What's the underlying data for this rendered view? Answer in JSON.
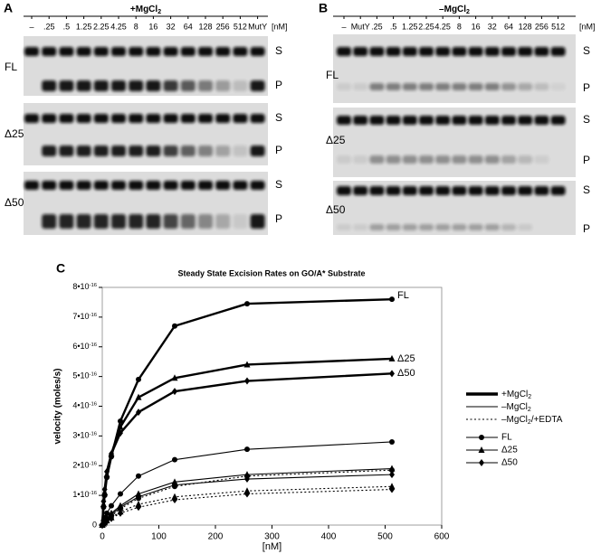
{
  "panel_a": {
    "label": "A",
    "condition": "+MgCl2",
    "lanes": [
      "–",
      ".25",
      ".5",
      "1.25",
      "2.25",
      "4.25",
      "8",
      "16",
      "32",
      "64",
      "128",
      "256",
      "512",
      "MutY"
    ],
    "unit": "[nM]",
    "rows": [
      "FL",
      "Δ25",
      "Δ50"
    ],
    "band_labels": [
      "S",
      "P"
    ]
  },
  "panel_b": {
    "label": "B",
    "condition": "–MgCl2",
    "lanes": [
      "–",
      "MutY",
      ".25",
      ".5",
      "1.25",
      "2.25",
      "4.25",
      "8",
      "16",
      "32",
      "64",
      "128",
      "256",
      "512"
    ],
    "unit": "[nM]",
    "rows": [
      "FL",
      "Δ25",
      "Δ50"
    ],
    "band_labels": [
      "S",
      "P"
    ]
  },
  "chart_data": {
    "type": "line",
    "panel_label": "C",
    "title": "Steady State Excision Rates on GO/A* Substrate",
    "x_label": "[nM]",
    "y_label": "velocity (moles/s)",
    "x": [
      0,
      2.25,
      4.25,
      8,
      16,
      32,
      64,
      128,
      256,
      512
    ],
    "xlim": [
      0,
      600
    ],
    "xticks": [
      0,
      100,
      200,
      300,
      400,
      500,
      600
    ],
    "ylim": [
      0,
      8e-16
    ],
    "yticks": [
      0,
      {
        "value": 1e-16,
        "label": "1•10-16"
      },
      {
        "value": 2e-16,
        "label": "2•10-16"
      },
      {
        "value": 3e-16,
        "label": "3•10-16"
      },
      {
        "value": 4e-16,
        "label": "4•10-16"
      },
      {
        "value": 5e-16,
        "label": "5•10-16"
      },
      {
        "value": 6e-16,
        "label": "6•10-16"
      },
      {
        "value": 7e-16,
        "label": "7•10-16"
      },
      {
        "value": 8e-16,
        "label": "8•10-16"
      }
    ],
    "color": "#000000",
    "series": [
      {
        "line": "thick",
        "marker": "circle",
        "values": [
          0,
          6e-17,
          1e-16,
          1.6e-16,
          2.3e-16,
          3.5e-16,
          4.9e-16,
          6.7e-16,
          7.45e-16,
          7.6e-16
        ]
      },
      {
        "line": "thick",
        "marker": "triangle",
        "values": [
          0,
          7e-17,
          1.1e-16,
          1.7e-16,
          2.4e-16,
          3.3e-16,
          4.3e-16,
          4.95e-16,
          5.4e-16,
          5.6e-16
        ]
      },
      {
        "line": "thick",
        "marker": "diamond",
        "values": [
          0,
          8e-17,
          1.2e-16,
          1.8e-16,
          2.4e-16,
          3.1e-16,
          3.8e-16,
          4.5e-16,
          4.85e-16,
          5.1e-16
        ]
      },
      {
        "line": "thin",
        "marker": "circle",
        "values": [
          0,
          1.5e-17,
          2.5e-17,
          4e-17,
          6.5e-17,
          1.05e-16,
          1.65e-16,
          2.2e-16,
          2.55e-16,
          2.8e-16
        ]
      },
      {
        "line": "thin",
        "marker": "triangle",
        "values": [
          0,
          8e-18,
          1.5e-17,
          2.5e-17,
          4e-17,
          6.5e-17,
          1.05e-16,
          1.45e-16,
          1.7e-16,
          1.9e-16
        ]
      },
      {
        "line": "thin",
        "marker": "diamond",
        "values": [
          0,
          6e-18,
          1.2e-17,
          2e-17,
          3.5e-17,
          6e-17,
          9.5e-17,
          1.35e-16,
          1.55e-16,
          1.7e-16
        ]
      },
      {
        "line": "dotted",
        "marker": "circle",
        "values": [
          0,
          5e-18,
          1e-17,
          2e-17,
          3e-17,
          5.5e-17,
          9e-17,
          1.3e-16,
          1.65e-16,
          1.85e-16
        ]
      },
      {
        "line": "dotted",
        "marker": "triangle",
        "values": [
          0,
          4e-18,
          8e-18,
          1.5e-17,
          2.5e-17,
          4.5e-17,
          7e-17,
          9.5e-17,
          1.15e-16,
          1.3e-16
        ]
      },
      {
        "line": "dotted",
        "marker": "diamond",
        "values": [
          0,
          3e-18,
          7e-18,
          1.2e-17,
          2.2e-17,
          4e-17,
          6e-17,
          8.5e-17,
          1.05e-16,
          1.2e-16
        ]
      }
    ],
    "annotations": [
      "FL",
      "Δ25",
      "Δ50"
    ],
    "legend": {
      "lines": [
        {
          "label": "+MgCl2",
          "line": "thick"
        },
        {
          "label": "–MgCl2",
          "line": "thin"
        },
        {
          "label": "–MgCl2/+EDTA",
          "line": "dotted"
        }
      ],
      "markers": [
        {
          "label": "FL",
          "marker": "circle"
        },
        {
          "label": "Δ25",
          "marker": "triangle"
        },
        {
          "label": "Δ50",
          "marker": "diamond"
        }
      ]
    }
  }
}
